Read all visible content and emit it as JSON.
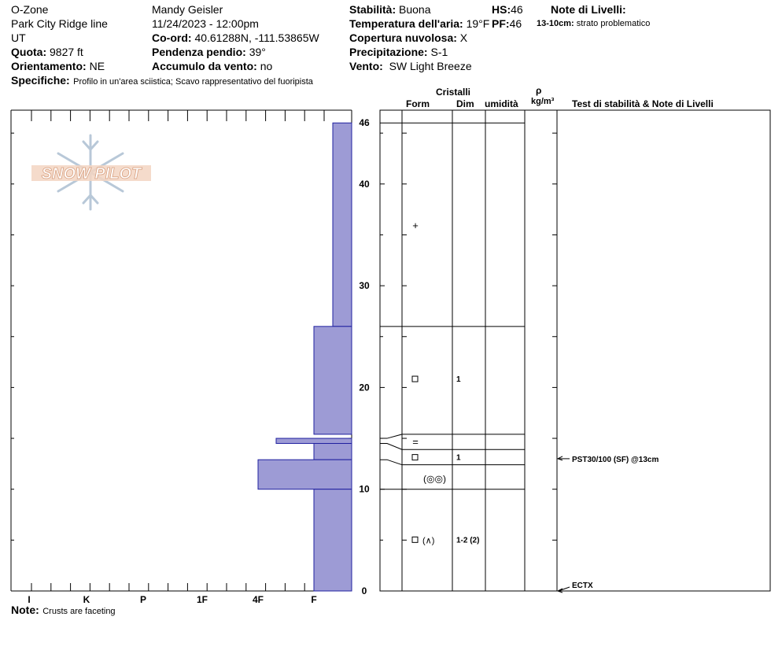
{
  "header": {
    "location": "O-Zone",
    "route": "Park City Ridge line",
    "state": "UT",
    "elevation_label": "Quota:",
    "elevation_value": "9827 ft",
    "aspect_label": "Orientamento:",
    "aspect_value": "NE",
    "observer": "Mandy Geisler",
    "datetime": "11/24/2023 - 12:00pm",
    "coords_label": "Co-ord:",
    "coords_value": "40.61288N, -111.53865W",
    "slope_label": "Pendenza pendio:",
    "slope_value": "39°",
    "windload_label": "Accumulo da vento:",
    "windload_value": "no",
    "stability_label": "Stabilità:",
    "stability_value": "Buona",
    "airtemp_label": "Temperatura dell'aria:",
    "airtemp_value": "19°F",
    "cloud_label": "Copertura nuvolosa:",
    "cloud_value": "X",
    "precip_label": "Precipitazione:",
    "precip_value": "S-1",
    "wind_label": "Vento:",
    "wind_value": "SW Light Breeze",
    "hs_label": "HS:",
    "hs_value": "46",
    "pf_label": "PF:",
    "pf_value": "46",
    "layer_notes_title": "Note di Livelli:",
    "layer_note_range": "13-10cm:",
    "layer_note_text": "strato problematico",
    "specifics_label": "Specifiche:",
    "specifics_value": "Profilo in un'area sciistica; Scavo rappresentativo del fuoripista"
  },
  "logo": {
    "text": "SNOW PILOT"
  },
  "columns": {
    "crystals": "Cristalli",
    "form": "Form",
    "size": "Dim",
    "moisture": "umidità",
    "rho": "ρ",
    "density_unit": "kg/m³",
    "tests": "Test di stabilità & Note di Livelli"
  },
  "footer": {
    "note_label": "Note:",
    "note_value": "Crusts are faceting"
  },
  "chart_data": {
    "type": "snow-profile",
    "height_axis": {
      "min": 0,
      "max": 46,
      "tick_labels": [
        "0",
        "10",
        "20",
        "30",
        "40",
        "46"
      ]
    },
    "hardness_axis": {
      "labels": [
        "I",
        "K",
        "P",
        "1F",
        "4F",
        "F"
      ]
    },
    "hardness_layers": [
      {
        "bottom": 26,
        "top": 46,
        "hardness": "F-"
      },
      {
        "bottom": 15.4,
        "top": 26,
        "hardness": "F"
      },
      {
        "bottom": 14.5,
        "top": 15.0,
        "hardness": "4F-"
      },
      {
        "bottom": 12.9,
        "top": 14.5,
        "hardness": "F"
      },
      {
        "bottom": 10,
        "top": 12.9,
        "hardness": "4F"
      },
      {
        "bottom": 0,
        "top": 10,
        "hardness": "F"
      }
    ],
    "layer_boundaries": [
      46,
      26,
      15.4,
      13.9,
      12.4,
      10,
      0
    ],
    "boundary_links": [
      {
        "left": 15.0,
        "right": 15.4
      },
      {
        "left": 14.5,
        "right": 13.9
      },
      {
        "left": 12.9,
        "right": 12.4
      },
      {
        "left": 10.0,
        "right": 10.0
      }
    ],
    "crystal_rows": [
      {
        "height": 35.9,
        "form": "+",
        "size": ""
      },
      {
        "height": 20.8,
        "form": "□",
        "size": "1"
      },
      {
        "height": 14.6,
        "form": "=",
        "size": ""
      },
      {
        "height": 13.1,
        "form": "□",
        "size": "1"
      },
      {
        "height": 11.1,
        "form": "⊚⊚",
        "size": ""
      },
      {
        "height": 5.0,
        "form": "□ (∧)",
        "size": "1-2 (2)"
      }
    ],
    "tests": [
      {
        "height": 13,
        "text": "PST30/100 (SF) @13cm"
      },
      {
        "height": 0,
        "text": "ECTX"
      }
    ],
    "colors": {
      "bar_fill": "#9d9bd5",
      "bar_stroke": "#2020a0",
      "logo": "#e8b090",
      "logo_flake": "#b8c8d8"
    }
  }
}
